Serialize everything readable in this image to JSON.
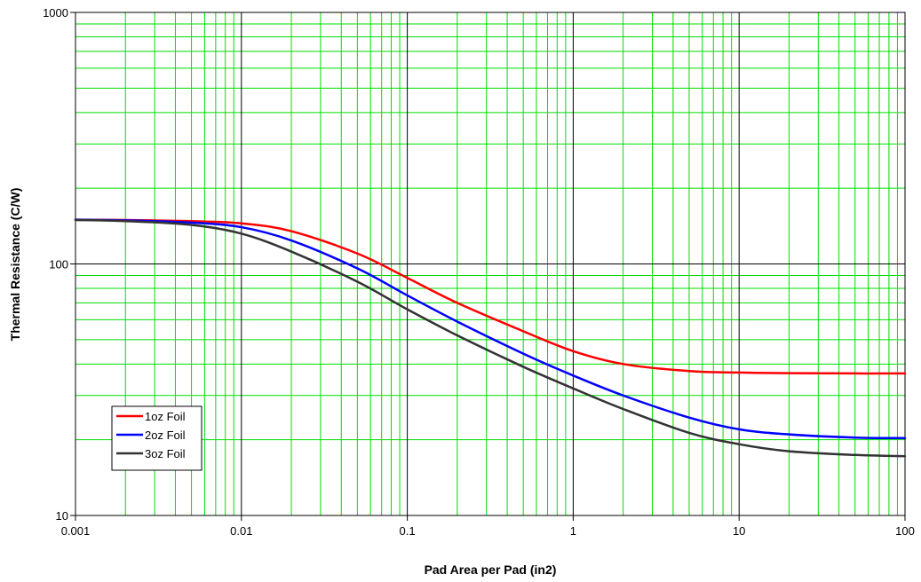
{
  "chart_data": {
    "type": "line",
    "title": "",
    "xlabel": "Pad Area per Pad (in2)",
    "ylabel": "Thermal Resistance (C/W)",
    "x_scale": "log",
    "y_scale": "log",
    "xlim": [
      0.001,
      100
    ],
    "ylim": [
      10,
      1000
    ],
    "x_ticks": [
      "0.001",
      "0.01",
      "0.1",
      "1",
      "10",
      "100"
    ],
    "y_ticks": [
      "10",
      "100",
      "1000"
    ],
    "grid": true,
    "major_grid_color": "#000000",
    "minor_grid_color": "#00dd00",
    "legend_position": "lower-left",
    "x": [
      0.001,
      0.002,
      0.005,
      0.01,
      0.02,
      0.05,
      0.1,
      0.2,
      0.5,
      1,
      2,
      5,
      10,
      20,
      50,
      100
    ],
    "series": [
      {
        "name": "1oz Foil",
        "color": "#ff0000",
        "values": [
          150,
          149.5,
          148,
          145,
          135,
          110,
          88,
          70,
          54,
          45,
          40,
          37.5,
          37,
          36.8,
          36.7,
          36.7
        ]
      },
      {
        "name": "2oz Foil",
        "color": "#0000ff",
        "values": [
          150,
          149,
          146,
          140,
          124,
          96,
          75,
          59,
          44,
          36,
          30,
          24.5,
          22,
          21,
          20.4,
          20.3
        ]
      },
      {
        "name": "3oz Foil",
        "color": "#333333",
        "values": [
          149.5,
          148,
          143,
          132,
          112,
          85,
          66,
          52,
          39,
          32,
          26.5,
          21.3,
          19.2,
          18,
          17.4,
          17.2
        ]
      }
    ]
  }
}
